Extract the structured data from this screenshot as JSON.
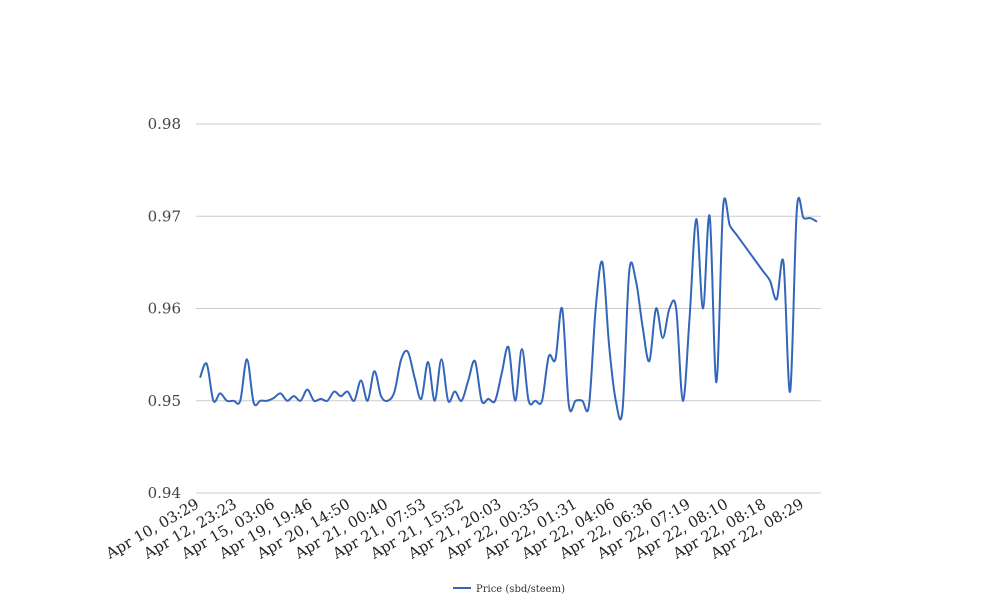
{
  "chart_data": {
    "type": "line",
    "title": "",
    "xlabel": "",
    "ylabel": "",
    "ylim": [
      0.94,
      0.98
    ],
    "yticks": [
      "0.94",
      "0.95",
      "0.96",
      "0.97",
      "0.98"
    ],
    "grid": true,
    "legend_position": "bottom-center",
    "line_color": "#3366bb",
    "grid_color": "#cccccc",
    "tick_labels": [
      "Apr 10, 03:29",
      "Apr 12, 23:23",
      "Apr 15, 03:06",
      "Apr 19, 19:46",
      "Apr 20, 14:50",
      "Apr 21, 00:40",
      "Apr 21, 07:53",
      "Apr 21, 15:52",
      "Apr 21, 20:03",
      "Apr 22, 00:35",
      "Apr 22, 01:31",
      "Apr 22, 04:06",
      "Apr 22, 06:36",
      "Apr 22, 07:19",
      "Apr 22, 08:10",
      "Apr 22, 08:18",
      "Apr 22, 08:29"
    ],
    "series": [
      {
        "name": "Price (sbd/steem)",
        "values": [
          0.9525,
          0.954,
          0.95,
          0.9508,
          0.95,
          0.95,
          0.95,
          0.9545,
          0.9498,
          0.95,
          0.95,
          0.9503,
          0.9508,
          0.95,
          0.9505,
          0.95,
          0.9512,
          0.95,
          0.9502,
          0.95,
          0.951,
          0.9505,
          0.951,
          0.95,
          0.9522,
          0.95,
          0.9532,
          0.9505,
          0.95,
          0.951,
          0.9545,
          0.9553,
          0.9525,
          0.9502,
          0.9542,
          0.95,
          0.9545,
          0.95,
          0.951,
          0.95,
          0.9522,
          0.9543,
          0.95,
          0.9502,
          0.95,
          0.953,
          0.9558,
          0.95,
          0.9556,
          0.95,
          0.95,
          0.95,
          0.9548,
          0.9545,
          0.96,
          0.9495,
          0.95,
          0.95,
          0.9495,
          0.96,
          0.965,
          0.956,
          0.95,
          0.949,
          0.964,
          0.963,
          0.958,
          0.9543,
          0.96,
          0.9568,
          0.96,
          0.96,
          0.95,
          0.959,
          0.9697,
          0.96,
          0.97,
          0.952,
          0.971,
          0.969,
          0.968,
          0.967,
          0.966,
          0.965,
          0.964,
          0.963,
          0.961,
          0.965,
          0.951,
          0.9708,
          0.9698,
          0.9698,
          0.9694
        ]
      }
    ]
  }
}
